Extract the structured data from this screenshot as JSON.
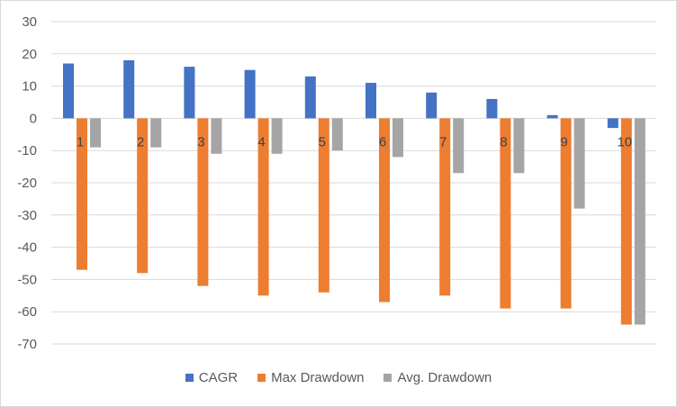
{
  "chart_data": {
    "type": "bar",
    "categories": [
      "1",
      "2",
      "3",
      "4",
      "5",
      "6",
      "7",
      "8",
      "9",
      "10"
    ],
    "series": [
      {
        "name": "CAGR",
        "color": "#4472c4",
        "values": [
          17,
          18,
          16,
          15,
          13,
          11,
          8,
          6,
          1,
          -3
        ]
      },
      {
        "name": "Max Drawdown",
        "color": "#ed7d31",
        "values": [
          -47,
          -48,
          -52,
          -55,
          -54,
          -57,
          -55,
          -59,
          -59,
          -64
        ]
      },
      {
        "name": "Avg. Drawdown",
        "color": "#a5a5a5",
        "values": [
          -9,
          -9,
          -11,
          -11,
          -10,
          -12,
          -17,
          -17,
          -28,
          -64
        ]
      }
    ],
    "ylim": [
      -70,
      30
    ],
    "yticks": [
      30,
      20,
      10,
      0,
      -10,
      -20,
      -30,
      -40,
      -50,
      -60,
      -70
    ],
    "grid": true,
    "legend_position": "bottom",
    "title": "",
    "xlabel": "",
    "ylabel": ""
  }
}
